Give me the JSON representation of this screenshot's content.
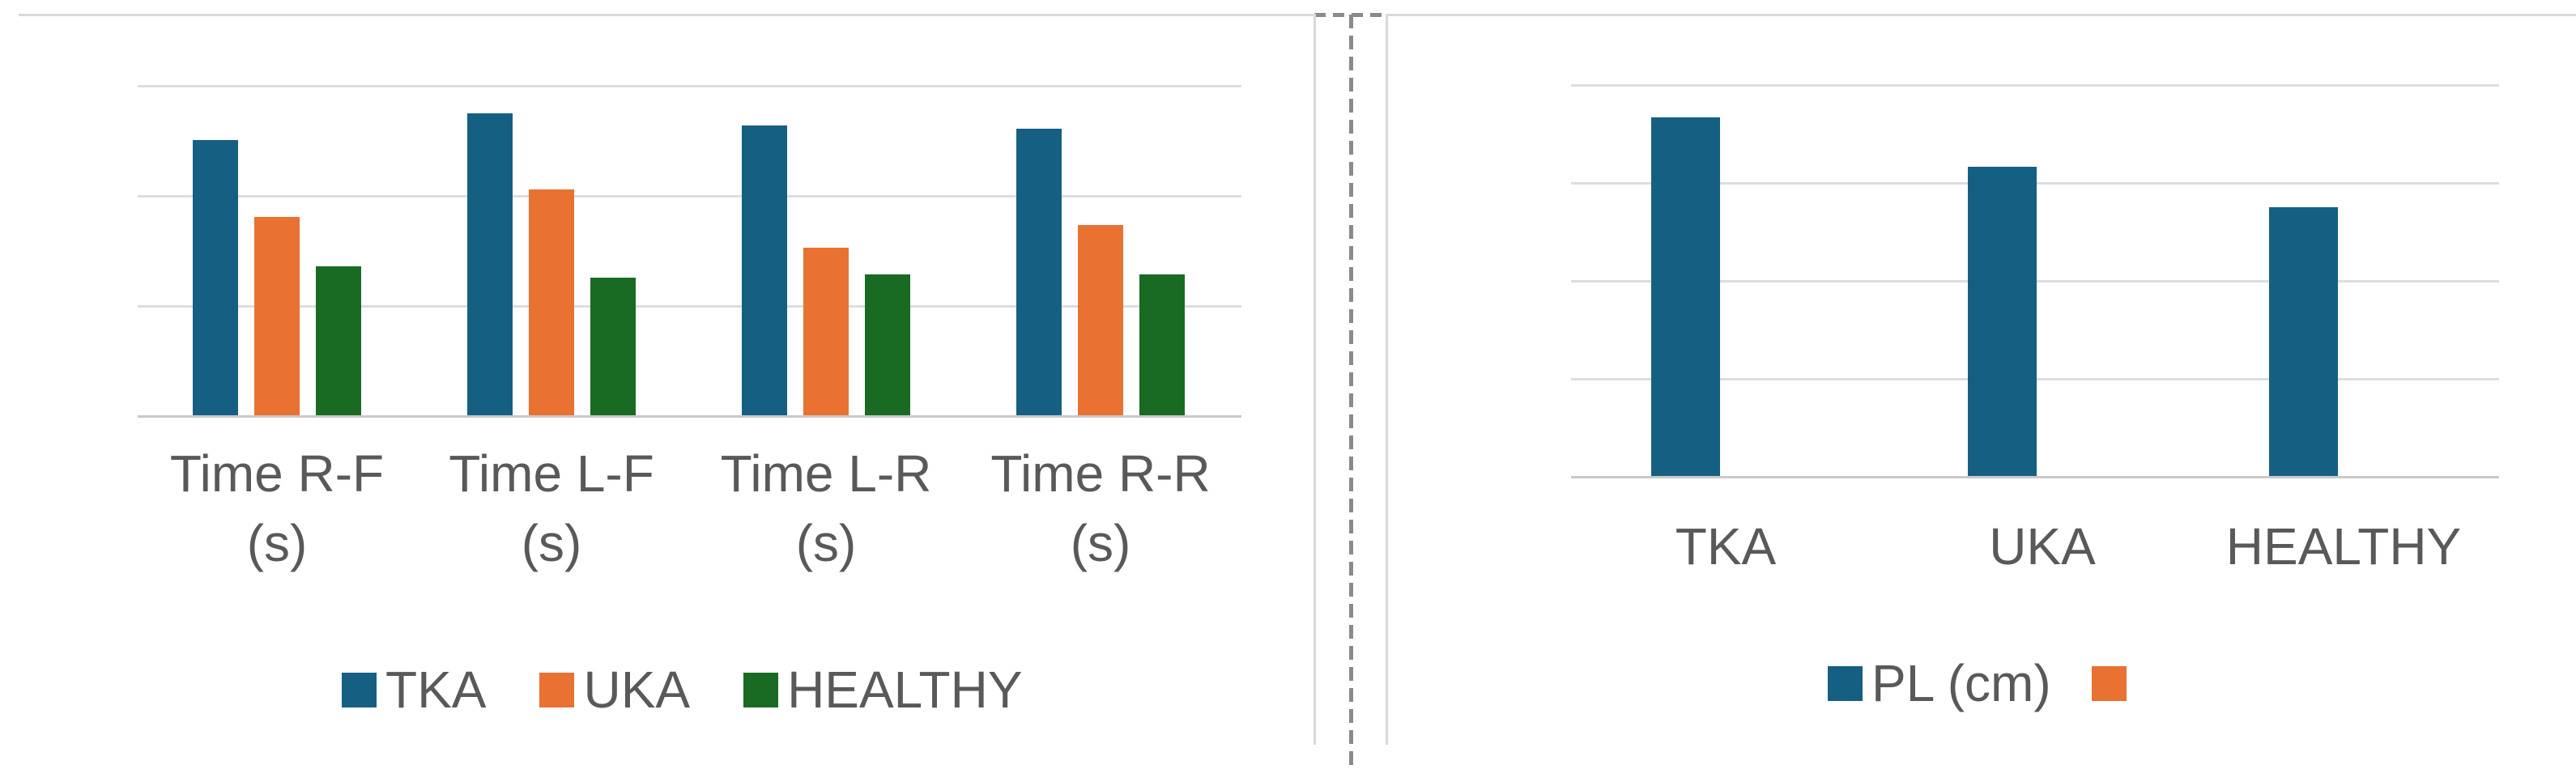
{
  "ui_colors": {
    "background": "#ffffff",
    "chart_border": "#d9d9d9",
    "gridline": "#dddddd",
    "axis_line": "#c9c9c9",
    "text": "#595959",
    "page_break_dash": "#8a8a8a"
  },
  "chart_data": [
    {
      "type": "bar",
      "title": "",
      "categories": [
        "Time R-F (s)",
        "Time L-F (s)",
        "Time L-R (s)",
        "Time R-R (s)"
      ],
      "categories_multiline": [
        [
          "Time R-F",
          "(s)"
        ],
        [
          "Time L-F",
          "(s)"
        ],
        [
          "Time L-R",
          "(s)"
        ],
        [
          "Time R-R",
          "(s)"
        ]
      ],
      "series": [
        {
          "name": "TKA",
          "color": "#156082",
          "values": [
            2.5,
            2.74,
            2.63,
            2.6
          ]
        },
        {
          "name": "UKA",
          "color": "#e97132",
          "values": [
            1.8,
            2.05,
            1.52,
            1.73
          ]
        },
        {
          "name": "HEALTHY",
          "color": "#196b24",
          "values": [
            1.35,
            1.25,
            1.28,
            1.28
          ]
        }
      ],
      "xlabel": "",
      "ylabel": "",
      "ylim": [
        0,
        3
      ],
      "yticks": [
        "0",
        "1",
        "2",
        "3"
      ],
      "ytick_values": [
        0,
        1,
        2,
        3
      ],
      "grid": true,
      "legend_position": "bottom"
    },
    {
      "type": "bar",
      "title": "",
      "categories": [
        "TKA",
        "UKA",
        "HEALTHY"
      ],
      "categories_multiline": [
        [
          "TKA"
        ],
        [
          "UKA"
        ],
        [
          "HEALTHY"
        ]
      ],
      "series": [
        {
          "name": "PL (cm)",
          "color": "#156082",
          "values": [
            183,
            158,
            137
          ]
        },
        {
          "name": "",
          "color": "#e97132",
          "values": []
        }
      ],
      "xlabel": "",
      "ylabel": "",
      "ylim": [
        0,
        200
      ],
      "yticks": [
        "0",
        "50",
        "100",
        "150",
        "200"
      ],
      "ytick_values": [
        0,
        50,
        100,
        150,
        200
      ],
      "grid": true,
      "legend_position": "bottom"
    }
  ]
}
